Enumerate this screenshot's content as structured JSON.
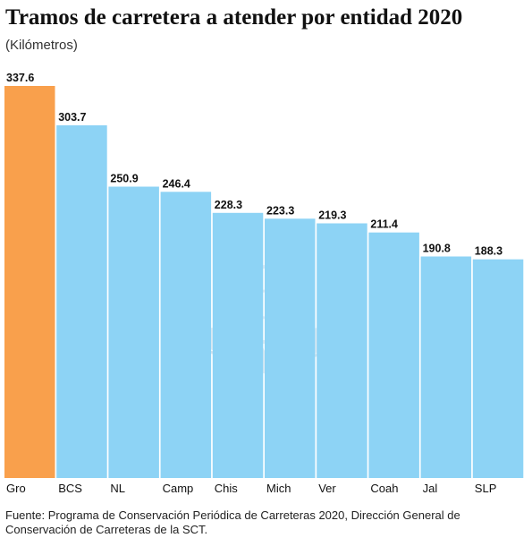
{
  "chart_data": {
    "type": "bar",
    "title": "Tramos de carretera a atender por entidad 2020",
    "subtitle": "(Kilómetros)",
    "categories": [
      "Gro",
      "BCS",
      "NL",
      "Camp",
      "Chis",
      "Mich",
      "Ver",
      "Coah",
      "Jal",
      "SLP"
    ],
    "values": [
      337.6,
      303.7,
      250.9,
      246.4,
      228.3,
      223.3,
      219.3,
      211.4,
      190.8,
      188.3
    ],
    "value_labels": [
      "337.6",
      "303.7",
      "250.9",
      "246.4",
      "228.3",
      "223.3",
      "219.3",
      "211.4",
      "190.8",
      "188.3"
    ],
    "ylim": [
      0,
      337.6
    ],
    "grid": false,
    "legend": "none",
    "colors": {
      "highlight": "#F9A04C",
      "default": "#8DD3F5",
      "watermark": "#C9DCE8"
    },
    "highlight_index": 0
  },
  "source": "Fuente: Programa de Conservación Periódica de Carreteras 2020, Dirección General de Conservación de Carreteras de la SCT."
}
